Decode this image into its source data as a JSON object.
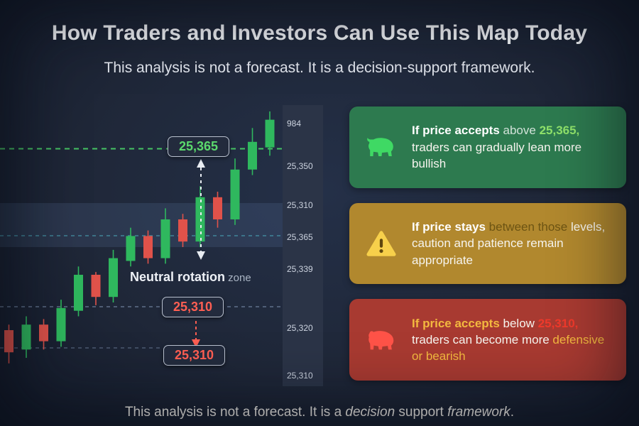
{
  "header": {
    "title": "How Traders and Investors Can Use This Map Today",
    "subtitle": "This analysis is not a forecast. It is a decision-support framework."
  },
  "footer": {
    "segments": [
      {
        "t": "This analysis is not a forecast. It is a ",
        "s": "w"
      },
      {
        "t": "decision",
        "s": "i"
      },
      {
        "t": " support ",
        "s": "w"
      },
      {
        "t": "framework",
        "s": "i"
      },
      {
        "t": ".",
        "s": "w"
      }
    ]
  },
  "chart": {
    "axis_labels": [
      "984",
      "25,350",
      "25,310",
      "25,365",
      "25,339",
      "25,320",
      "25,310"
    ],
    "upper_badge": "25,365",
    "mid_badge": "25,310",
    "lower_badge": "25,310",
    "neutral_label_bold": "Neutral rotation",
    "neutral_label_light": " zone",
    "colors": {
      "up": "#2fb85e",
      "down": "#e0524a",
      "resistance_line": "#46c464",
      "resistance_text": "#5bd96d",
      "support_text": "#ff5f53",
      "zone_fill": "rgba(110,145,195,0.16)",
      "axis_bg": "#2b3447"
    }
  },
  "cards": [
    {
      "bg": "#2d7a4f",
      "icon": "bull-icon",
      "icon_color": "#3fd964",
      "segments": [
        {
          "t": "If price accepts ",
          "s": "wb"
        },
        {
          "t": "above ",
          "s": "m"
        },
        {
          "t": "25,365,",
          "s": "g"
        },
        {
          "t": " traders can gradually lean more bullish",
          "s": "w"
        }
      ]
    },
    {
      "bg": "#b1882e",
      "icon": "warning-icon",
      "icon_color": "#f7d04b",
      "segments": [
        {
          "t": "If price stays ",
          "s": "wb"
        },
        {
          "t": "between those ",
          "s": "dk"
        },
        {
          "t": "levels, caution and patience remain appropriate",
          "s": "w"
        }
      ]
    },
    {
      "bg": "#a83a31",
      "icon": "bear-icon",
      "icon_color": "#ff5348",
      "segments": [
        {
          "t": "If price accepts ",
          "s": "ab"
        },
        {
          "t": "below ",
          "s": "w"
        },
        {
          "t": "25,310,",
          "s": "rb"
        },
        {
          "t": " traders can become more ",
          "s": "w"
        },
        {
          "t": "defensive or bearish",
          "s": "a"
        }
      ]
    }
  ],
  "chart_data": {
    "type": "candlestick",
    "title": "How Traders and Investors Can Use This Map Today",
    "y_axis_ticks": [
      "984",
      "25,350",
      "25,310",
      "25,365",
      "25,339",
      "25,320",
      "25,310"
    ],
    "resistance_level": "25,365",
    "support_level": "25,310",
    "annotations": [
      "25,365",
      "Neutral rotation zone",
      "25,310",
      "25,310"
    ],
    "price_scale": "normalized 0-100 (estimated from pixel positions)",
    "candles": [
      {
        "o": 20,
        "h": 22,
        "l": 8,
        "c": 12
      },
      {
        "o": 13,
        "h": 25,
        "l": 10,
        "c": 22
      },
      {
        "o": 22,
        "h": 24,
        "l": 13,
        "c": 16
      },
      {
        "o": 16,
        "h": 31,
        "l": 14,
        "c": 28
      },
      {
        "o": 27,
        "h": 43,
        "l": 25,
        "c": 40
      },
      {
        "o": 40,
        "h": 41,
        "l": 29,
        "c": 32
      },
      {
        "o": 32,
        "h": 49,
        "l": 30,
        "c": 46
      },
      {
        "o": 45,
        "h": 57,
        "l": 43,
        "c": 54
      },
      {
        "o": 54,
        "h": 56,
        "l": 44,
        "c": 46
      },
      {
        "o": 46,
        "h": 64,
        "l": 44,
        "c": 60
      },
      {
        "o": 60,
        "h": 62,
        "l": 50,
        "c": 52
      },
      {
        "o": 52,
        "h": 72,
        "l": 50,
        "c": 68
      },
      {
        "o": 68,
        "h": 70,
        "l": 57,
        "c": 60
      },
      {
        "o": 60,
        "h": 82,
        "l": 58,
        "c": 78
      },
      {
        "o": 78,
        "h": 93,
        "l": 76,
        "c": 88
      },
      {
        "o": 86,
        "h": 99,
        "l": 83,
        "c": 96
      }
    ]
  }
}
